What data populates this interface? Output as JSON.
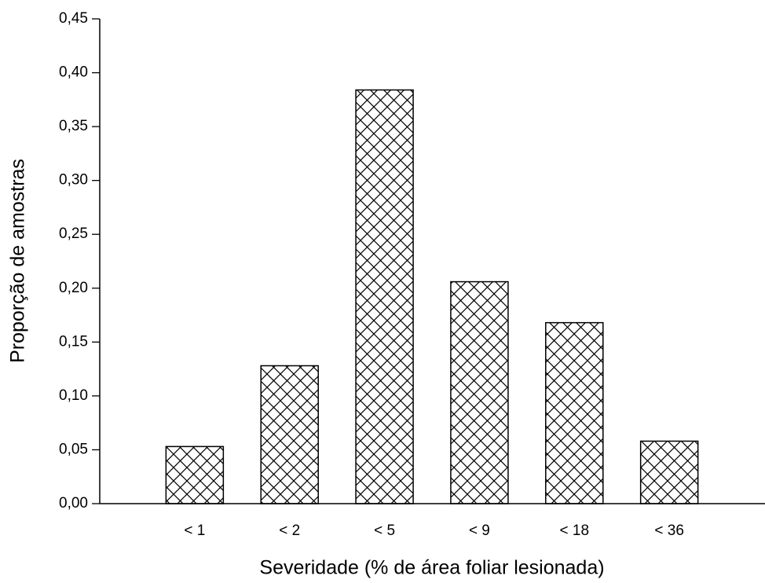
{
  "chart_data": {
    "type": "bar",
    "x_label": "Severidade (% de área foliar lesionada)",
    "y_label": "Proporção de amostras",
    "categories": [
      "< 1",
      "< 2",
      "< 5",
      "< 9",
      "< 18",
      "< 36"
    ],
    "values": [
      0.053,
      0.128,
      0.384,
      0.206,
      0.168,
      0.058
    ],
    "color": "#000000",
    "ylim": [
      0,
      0.45
    ],
    "yticks": [
      {
        "value": 0,
        "label": "0,00"
      },
      {
        "value": 0.05,
        "label": "0,05"
      },
      {
        "value": 0.1,
        "label": "0,10"
      },
      {
        "value": 0.15,
        "label": "0,15"
      },
      {
        "value": 0.2,
        "label": "0,20"
      },
      {
        "value": 0.25,
        "label": "0,25"
      },
      {
        "value": 0.3,
        "label": "0,30"
      },
      {
        "value": 0.35,
        "label": "0,35"
      },
      {
        "value": 0.4,
        "label": "0,40"
      },
      {
        "value": 0.45,
        "label": "0,45"
      }
    ],
    "grid": false
  }
}
